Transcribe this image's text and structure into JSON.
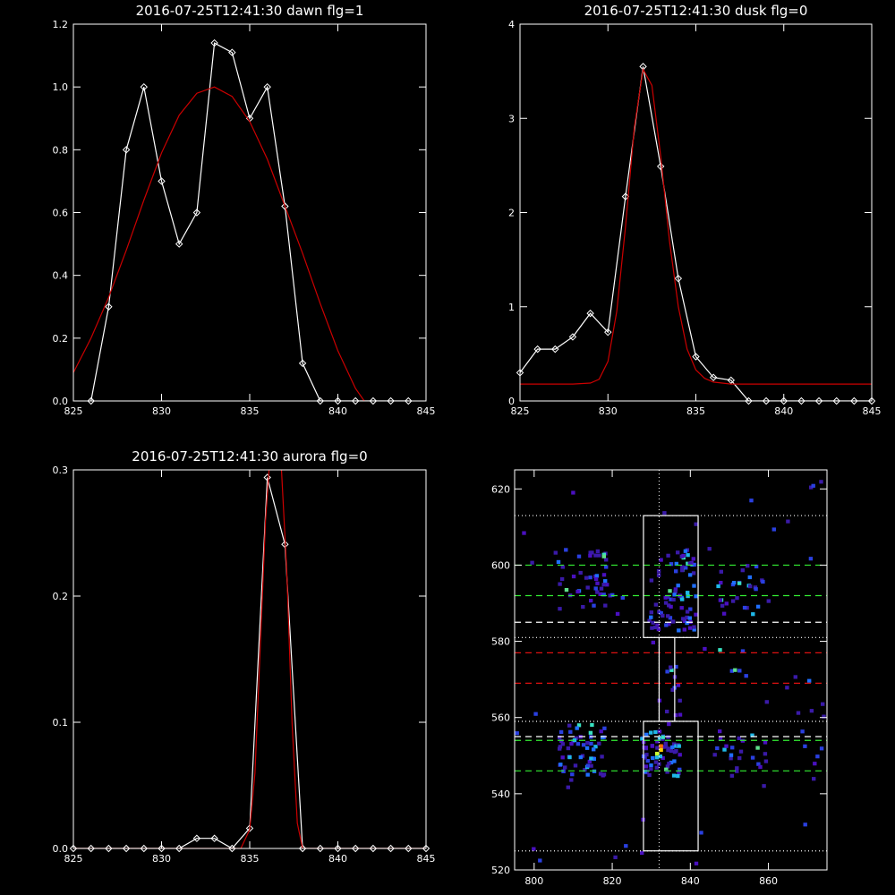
{
  "chart_data": [
    {
      "id": "dawn",
      "type": "line",
      "title": "2016-07-25T12:41:30 dawn flg=1",
      "xlim": [
        825,
        845
      ],
      "ylim": [
        0,
        1.2
      ],
      "xticks": [
        825,
        830,
        835,
        840,
        845
      ],
      "yticks": [
        0.0,
        0.2,
        0.4,
        0.6,
        0.8,
        1.0,
        1.2
      ],
      "ytick_labels": [
        "0.0",
        "0.2",
        "0.4",
        "0.6",
        "0.8",
        "1.0",
        "1.2"
      ],
      "series": [
        {
          "color": "#ffffff",
          "marker": "diamond",
          "x": [
            826,
            827,
            828,
            829,
            830,
            831,
            832,
            833,
            834,
            835,
            836,
            837,
            838,
            839,
            840,
            841,
            842,
            843,
            844
          ],
          "y": [
            0,
            0.3,
            0.8,
            1.0,
            0.7,
            0.5,
            0.6,
            1.14,
            1.11,
            0.9,
            1.0,
            0.62,
            0.12,
            0,
            0,
            0,
            0,
            0,
            0
          ]
        },
        {
          "color": "#cc0000",
          "marker": "none",
          "x": [
            825,
            826,
            827,
            828,
            829,
            830,
            831,
            832,
            833,
            834,
            835,
            836,
            837,
            838,
            839,
            840,
            841,
            841.5
          ],
          "y": [
            0.09,
            0.2,
            0.33,
            0.48,
            0.64,
            0.79,
            0.91,
            0.98,
            1.0,
            0.97,
            0.89,
            0.77,
            0.62,
            0.47,
            0.31,
            0.16,
            0.04,
            0
          ]
        }
      ]
    },
    {
      "id": "dusk",
      "type": "line",
      "title": "2016-07-25T12:41:30 dusk flg=0",
      "xlim": [
        825,
        845
      ],
      "ylim": [
        0,
        4
      ],
      "xticks": [
        825,
        830,
        835,
        840,
        845
      ],
      "yticks": [
        0,
        1,
        2,
        3,
        4
      ],
      "ytick_labels": [
        "0",
        "1",
        "2",
        "3",
        "4"
      ],
      "series": [
        {
          "color": "#ffffff",
          "marker": "diamond",
          "x": [
            825,
            826,
            827,
            828,
            829,
            830,
            831,
            832,
            833,
            834,
            835,
            836,
            837,
            838,
            839,
            840,
            841,
            842,
            843,
            844,
            845
          ],
          "y": [
            0.3,
            0.55,
            0.55,
            0.68,
            0.93,
            0.73,
            2.17,
            3.55,
            2.49,
            1.3,
            0.47,
            0.25,
            0.22,
            0,
            0,
            0,
            0,
            0,
            0,
            0,
            0
          ]
        },
        {
          "color": "#cc0000",
          "marker": "none",
          "x": [
            825,
            828,
            829,
            829.5,
            830,
            830.5,
            831,
            831.5,
            832,
            832.5,
            833,
            833.5,
            834,
            834.5,
            835,
            835.5,
            836,
            837,
            838,
            845
          ],
          "y": [
            0.18,
            0.18,
            0.19,
            0.23,
            0.42,
            0.95,
            1.85,
            2.9,
            3.52,
            3.35,
            2.6,
            1.7,
            1.0,
            0.55,
            0.33,
            0.24,
            0.2,
            0.18,
            0.18,
            0.18
          ]
        }
      ]
    },
    {
      "id": "aurora",
      "type": "line",
      "title": "2016-07-25T12:41:30 aurora flg=0",
      "xlim": [
        825,
        845
      ],
      "ylim": [
        0,
        0.3
      ],
      "xticks": [
        825,
        830,
        835,
        840,
        845
      ],
      "yticks": [
        0.0,
        0.1,
        0.2,
        0.3
      ],
      "ytick_labels": [
        "0.0",
        "0.1",
        "0.2",
        "0.3"
      ],
      "series": [
        {
          "color": "#ffffff",
          "marker": "diamond",
          "x": [
            825,
            826,
            827,
            828,
            829,
            830,
            831,
            832,
            833,
            834,
            835,
            836,
            837,
            838,
            839,
            840,
            841,
            842,
            843,
            844,
            845
          ],
          "y": [
            0,
            0,
            0,
            0,
            0,
            0,
            0,
            0.008,
            0.008,
            0,
            0.016,
            0.294,
            0.241,
            0,
            0,
            0,
            0,
            0,
            0,
            0,
            0
          ]
        },
        {
          "color": "#cc0000",
          "marker": "none",
          "x": [
            825,
            834.5,
            835,
            835.3,
            835.6,
            835.9,
            836.2,
            836.5,
            836.8,
            837.1,
            837.4,
            837.7,
            838,
            845
          ],
          "y": [
            0,
            0,
            0.015,
            0.06,
            0.16,
            0.26,
            0.32,
            0.33,
            0.3,
            0.22,
            0.1,
            0.02,
            0,
            0
          ]
        }
      ]
    },
    {
      "id": "image",
      "type": "heatmap",
      "title": "",
      "xlim": [
        795,
        875
      ],
      "ylim": [
        520,
        625
      ],
      "xticks": [
        800,
        820,
        840,
        860
      ],
      "yticks": [
        520,
        540,
        560,
        580,
        600,
        620
      ],
      "lines": {
        "vertical_dotted_x": 832,
        "dotted_y": [
          525,
          559,
          581,
          613
        ],
        "green_dashed_y": [
          546,
          554,
          592,
          600
        ],
        "white_dashed_y": [
          555,
          585
        ],
        "red_dashed_y": [
          569,
          577
        ]
      },
      "boxes": [
        {
          "x": [
            828,
            842
          ],
          "y": [
            525,
            559
          ]
        },
        {
          "x": [
            828,
            842
          ],
          "y": [
            581,
            613
          ]
        },
        {
          "x": [
            832,
            836
          ],
          "y": [
            559,
            581
          ]
        }
      ]
    }
  ]
}
